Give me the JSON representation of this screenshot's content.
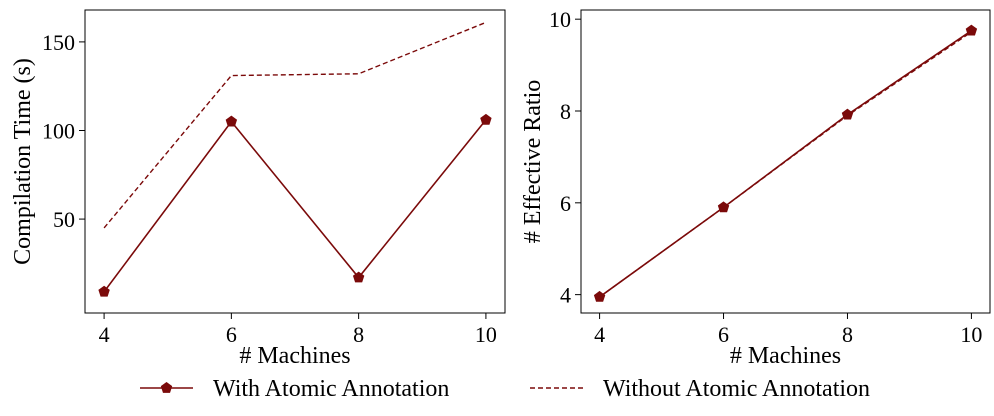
{
  "colors": {
    "series": "#7b0a0a",
    "axis": "#000000",
    "background": "#ffffff"
  },
  "legend": {
    "placement": "bottom-center",
    "entries": [
      {
        "label": "With Atomic Annotation",
        "style": "solid-pentagon-marker"
      },
      {
        "label": "Without Atomic Annotation",
        "style": "dashed"
      }
    ]
  },
  "chart_data": [
    {
      "type": "line",
      "xlabel": "# Machines",
      "ylabel": "Compilation Time (s)",
      "x": [
        4,
        6,
        8,
        10
      ],
      "xlim": [
        3.7,
        10.3
      ],
      "ylim": [
        -3,
        168
      ],
      "xticks": [
        4,
        6,
        8,
        10
      ],
      "yticks": [
        50,
        100,
        150
      ],
      "grid": false,
      "series": [
        {
          "name": "With Atomic Annotation",
          "values": [
            9,
            105,
            17,
            106
          ],
          "style": "solid",
          "marker": "pentagon"
        },
        {
          "name": "Without Atomic Annotation",
          "values": [
            45,
            131,
            132,
            161
          ],
          "style": "dashed",
          "marker": "none"
        }
      ]
    },
    {
      "type": "line",
      "xlabel": "# Machines",
      "ylabel": "# Effective Ratio",
      "x": [
        4,
        6,
        8,
        10
      ],
      "xlim": [
        3.7,
        10.3
      ],
      "ylim": [
        3.6,
        10.2
      ],
      "xticks": [
        4,
        6,
        8,
        10
      ],
      "yticks": [
        4,
        6,
        8,
        10
      ],
      "grid": false,
      "series": [
        {
          "name": "With Atomic Annotation",
          "values": [
            3.95,
            5.9,
            7.92,
            9.75
          ],
          "style": "solid",
          "marker": "pentagon"
        },
        {
          "name": "Without Atomic Annotation",
          "values": [
            3.95,
            5.9,
            7.9,
            9.72
          ],
          "style": "dashed",
          "marker": "none"
        }
      ]
    }
  ]
}
